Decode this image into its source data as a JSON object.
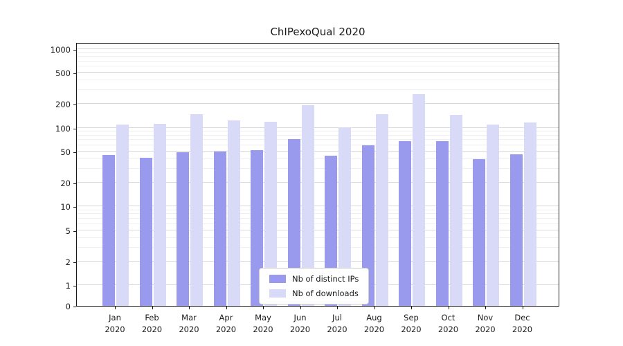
{
  "chart_data": {
    "type": "bar",
    "title": "ChIPexoQual 2020",
    "categories": [
      "Jan",
      "Feb",
      "Mar",
      "Apr",
      "May",
      "Jun",
      "Jul",
      "Aug",
      "Sep",
      "Oct",
      "Nov",
      "Dec"
    ],
    "x_sublabel_year": "2020",
    "series": [
      {
        "name": "Nb of distinct IPs",
        "color": "#9999ee",
        "values": [
          45,
          42,
          49,
          50,
          52,
          72,
          44,
          60,
          67,
          67,
          40,
          46
        ]
      },
      {
        "name": "Nb of downloads",
        "color": "#d9d9f8",
        "values": [
          110,
          113,
          150,
          125,
          120,
          195,
          102,
          150,
          270,
          145,
          110,
          118
        ]
      }
    ],
    "y_ticks": [
      0,
      1,
      2,
      5,
      10,
      20,
      50,
      100,
      200,
      500,
      1000
    ],
    "y_minor_gridlines": [
      3,
      4,
      6,
      7,
      8,
      9,
      30,
      40,
      60,
      70,
      80,
      90,
      300,
      400,
      600,
      700,
      800,
      900
    ],
    "y_scale": "symlog",
    "grid": true,
    "legend_position": "lower center"
  }
}
